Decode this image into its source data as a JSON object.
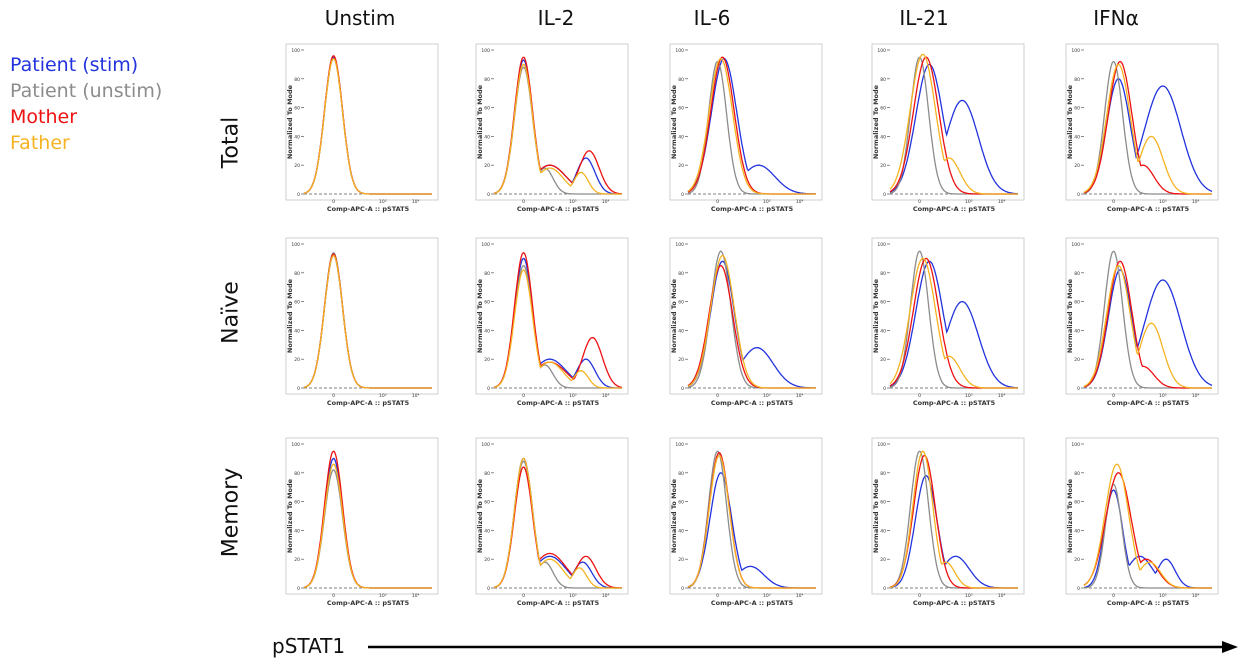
{
  "legend": [
    {
      "label": "Patient (stim)",
      "color": "#2233dd"
    },
    {
      "label": "Patient (unstim)",
      "color": "#8c8c8c"
    },
    {
      "label": "Mother",
      "color": "#ee1111"
    },
    {
      "label": "Father",
      "color": "#f5b321"
    }
  ],
  "columns": [
    "Unstim",
    "IL-2",
    "IL-6",
    "IL-21",
    "IFNα"
  ],
  "rows": [
    "Total",
    "Naïve",
    "Memory"
  ],
  "bottom_axis_label": "pSTAT1",
  "chart_data": {
    "type": "line",
    "panel_xlabel": "Comp-APC-A :: pSTAT5",
    "panel_ylabel": "Normalized To Mode",
    "yticks": [
      "0",
      "20",
      "40",
      "60",
      "80",
      "100"
    ],
    "xticks": [
      "0",
      "10³",
      "10⁴"
    ],
    "ylim": [
      0,
      100
    ],
    "x_scale": "biexponential",
    "series_names": [
      "Patient (stim)",
      "Patient (unstim)",
      "Mother",
      "Father"
    ],
    "panels": [
      {
        "row": "Total",
        "col": "Unstim",
        "curves": [
          {
            "series": "Patient (stim)",
            "peaks": [
              [
                0,
                95,
                1
              ]
            ]
          },
          {
            "series": "Patient (unstim)",
            "peaks": [
              [
                0,
                94,
                1
              ]
            ]
          },
          {
            "series": "Mother",
            "peaks": [
              [
                0,
                96,
                1
              ]
            ]
          },
          {
            "series": "Father",
            "peaks": [
              [
                0,
                94,
                1
              ]
            ]
          }
        ]
      },
      {
        "row": "Total",
        "col": "IL-2",
        "curves": [
          {
            "series": "Patient (stim)",
            "peaks": [
              [
                0,
                93,
                1
              ],
              [
                1.6,
                20,
                1.8
              ],
              [
                3.8,
                25,
                1
              ]
            ]
          },
          {
            "series": "Patient (unstim)",
            "peaks": [
              [
                0,
                88,
                1
              ],
              [
                1.3,
                18,
                0.9
              ]
            ]
          },
          {
            "series": "Mother",
            "peaks": [
              [
                0,
                95,
                1
              ],
              [
                1.6,
                20,
                1.8
              ],
              [
                4.0,
                30,
                1.1
              ]
            ]
          },
          {
            "series": "Father",
            "peaks": [
              [
                0,
                90,
                1
              ],
              [
                1.6,
                18,
                1.5
              ],
              [
                3.5,
                15,
                0.8
              ]
            ]
          }
        ]
      },
      {
        "row": "Total",
        "col": "IL-6",
        "curves": [
          {
            "series": "Patient (stim)",
            "peaks": [
              [
                0.4,
                94,
                1.4
              ],
              [
                2.5,
                20,
                1.8
              ]
            ]
          },
          {
            "series": "Patient (unstim)",
            "peaks": [
              [
                0,
                92,
                1
              ]
            ]
          },
          {
            "series": "Mother",
            "peaks": [
              [
                0.3,
                95,
                1.3
              ]
            ]
          },
          {
            "series": "Father",
            "peaks": [
              [
                0.2,
                94,
                1.3
              ]
            ]
          }
        ]
      },
      {
        "row": "Total",
        "col": "IL-21",
        "curves": [
          {
            "series": "Patient (stim)",
            "peaks": [
              [
                0.6,
                90,
                1.5
              ],
              [
                2.6,
                65,
                1.8
              ]
            ]
          },
          {
            "series": "Patient (unstim)",
            "peaks": [
              [
                0,
                95,
                1
              ]
            ]
          },
          {
            "series": "Mother",
            "peaks": [
              [
                0.4,
                95,
                1.4
              ]
            ]
          },
          {
            "series": "Father",
            "peaks": [
              [
                0.2,
                97,
                1.4
              ],
              [
                1.8,
                25,
                1.2
              ]
            ]
          }
        ]
      },
      {
        "row": "Total",
        "col": "IFNα",
        "curves": [
          {
            "series": "Patient (stim)",
            "peaks": [
              [
                0.3,
                80,
                1.3
              ],
              [
                3.0,
                75,
                2.0
              ]
            ]
          },
          {
            "series": "Patient (unstim)",
            "peaks": [
              [
                0,
                92,
                1
              ]
            ]
          },
          {
            "series": "Mother",
            "peaks": [
              [
                0.4,
                92,
                1.3
              ],
              [
                1.8,
                20,
                1.2
              ]
            ]
          },
          {
            "series": "Father",
            "peaks": [
              [
                0.3,
                90,
                1.3
              ],
              [
                2.3,
                40,
                1.3
              ]
            ]
          }
        ]
      },
      {
        "row": "Naïve",
        "col": "Unstim",
        "curves": [
          {
            "series": "Patient (stim)",
            "peaks": [
              [
                0,
                92,
                1
              ]
            ]
          },
          {
            "series": "Patient (unstim)",
            "peaks": [
              [
                0,
                94,
                1
              ]
            ]
          },
          {
            "series": "Mother",
            "peaks": [
              [
                0,
                93,
                1
              ]
            ]
          },
          {
            "series": "Father",
            "peaks": [
              [
                0,
                92,
                1
              ]
            ]
          }
        ]
      },
      {
        "row": "Naïve",
        "col": "IL-2",
        "curves": [
          {
            "series": "Patient (stim)",
            "peaks": [
              [
                0,
                90,
                1
              ],
              [
                1.6,
                20,
                1.8
              ],
              [
                3.8,
                20,
                1
              ]
            ]
          },
          {
            "series": "Patient (unstim)",
            "peaks": [
              [
                0,
                85,
                1
              ],
              [
                1.3,
                16,
                0.9
              ]
            ]
          },
          {
            "series": "Mother",
            "peaks": [
              [
                0,
                94,
                1
              ],
              [
                1.6,
                18,
                1.8
              ],
              [
                4.2,
                35,
                1.1
              ]
            ]
          },
          {
            "series": "Father",
            "peaks": [
              [
                0,
                82,
                1
              ],
              [
                1.6,
                18,
                1.5
              ],
              [
                3.5,
                12,
                0.8
              ]
            ]
          }
        ]
      },
      {
        "row": "Naïve",
        "col": "IL-6",
        "curves": [
          {
            "series": "Patient (stim)",
            "peaks": [
              [
                0.3,
                88,
                1.3
              ],
              [
                2.4,
                28,
                1.8
              ]
            ]
          },
          {
            "series": "Patient (unstim)",
            "peaks": [
              [
                0.2,
                95,
                1.1
              ]
            ]
          },
          {
            "series": "Mother",
            "peaks": [
              [
                0.2,
                85,
                1.3
              ]
            ]
          },
          {
            "series": "Father",
            "peaks": [
              [
                0.3,
                92,
                1.3
              ]
            ]
          }
        ]
      },
      {
        "row": "Naïve",
        "col": "IL-21",
        "curves": [
          {
            "series": "Patient (stim)",
            "peaks": [
              [
                0.6,
                88,
                1.5
              ],
              [
                2.6,
                60,
                1.8
              ]
            ]
          },
          {
            "series": "Patient (unstim)",
            "peaks": [
              [
                0,
                95,
                1
              ]
            ]
          },
          {
            "series": "Mother",
            "peaks": [
              [
                0.4,
                90,
                1.4
              ]
            ]
          },
          {
            "series": "Father",
            "peaks": [
              [
                0.2,
                90,
                1.4
              ],
              [
                1.8,
                22,
                1.2
              ]
            ]
          }
        ]
      },
      {
        "row": "Naïve",
        "col": "IFNα",
        "curves": [
          {
            "series": "Patient (stim)",
            "peaks": [
              [
                0.4,
                82,
                1.3
              ],
              [
                3.0,
                75,
                2.0
              ]
            ]
          },
          {
            "series": "Patient (unstim)",
            "peaks": [
              [
                0,
                95,
                1
              ]
            ]
          },
          {
            "series": "Mother",
            "peaks": [
              [
                0.4,
                88,
                1.3
              ],
              [
                1.8,
                15,
                1.2
              ]
            ]
          },
          {
            "series": "Father",
            "peaks": [
              [
                0.3,
                85,
                1.3
              ],
              [
                2.3,
                45,
                1.3
              ]
            ]
          }
        ]
      },
      {
        "row": "Memory",
        "col": "Unstim",
        "curves": [
          {
            "series": "Patient (stim)",
            "peaks": [
              [
                0,
                90,
                1
              ]
            ]
          },
          {
            "series": "Patient (unstim)",
            "peaks": [
              [
                0,
                82,
                1
              ]
            ]
          },
          {
            "series": "Mother",
            "peaks": [
              [
                0,
                95,
                1
              ]
            ]
          },
          {
            "series": "Father",
            "peaks": [
              [
                0,
                86,
                1
              ]
            ]
          }
        ]
      },
      {
        "row": "Memory",
        "col": "IL-2",
        "curves": [
          {
            "series": "Patient (stim)",
            "peaks": [
              [
                0,
                90,
                1
              ],
              [
                1.6,
                22,
                1.8
              ],
              [
                3.6,
                18,
                1
              ]
            ]
          },
          {
            "series": "Patient (unstim)",
            "peaks": [
              [
                0,
                88,
                1
              ],
              [
                1.3,
                18,
                0.9
              ]
            ]
          },
          {
            "series": "Mother",
            "peaks": [
              [
                0,
                84,
                1
              ],
              [
                1.6,
                24,
                1.8
              ],
              [
                3.8,
                22,
                1.1
              ]
            ]
          },
          {
            "series": "Father",
            "peaks": [
              [
                0,
                90,
                1
              ],
              [
                1.6,
                20,
                1.5
              ],
              [
                3.4,
                14,
                0.8
              ]
            ]
          }
        ]
      },
      {
        "row": "Memory",
        "col": "IL-6",
        "curves": [
          {
            "series": "Patient (stim)",
            "peaks": [
              [
                0.2,
                80,
                1.2
              ],
              [
                2.0,
                15,
                1.5
              ]
            ]
          },
          {
            "series": "Patient (unstim)",
            "peaks": [
              [
                0,
                95,
                1
              ]
            ]
          },
          {
            "series": "Mother",
            "peaks": [
              [
                0.1,
                94,
                1.1
              ]
            ]
          },
          {
            "series": "Father",
            "peaks": [
              [
                0.1,
                92,
                1.1
              ]
            ]
          }
        ]
      },
      {
        "row": "Memory",
        "col": "IL-21",
        "curves": [
          {
            "series": "Patient (stim)",
            "peaks": [
              [
                0.4,
                78,
                1.2
              ],
              [
                2.2,
                22,
                1.5
              ]
            ]
          },
          {
            "series": "Patient (unstim)",
            "peaks": [
              [
                0,
                95,
                1
              ]
            ]
          },
          {
            "series": "Mother",
            "peaks": [
              [
                0.3,
                92,
                1.2
              ]
            ]
          },
          {
            "series": "Father",
            "peaks": [
              [
                0.2,
                95,
                1.1
              ],
              [
                1.6,
                18,
                1.0
              ]
            ]
          }
        ]
      },
      {
        "row": "Memory",
        "col": "IFNα",
        "curves": [
          {
            "series": "Patient (stim)",
            "peaks": [
              [
                0,
                68,
                1
              ],
              [
                1.6,
                22,
                1.4
              ],
              [
                3.2,
                20,
                1.0
              ]
            ]
          },
          {
            "series": "Patient (unstim)",
            "peaks": [
              [
                0,
                72,
                0.9
              ]
            ]
          },
          {
            "series": "Mother",
            "peaks": [
              [
                0.3,
                80,
                1.4
              ],
              [
                2.0,
                20,
                1.3
              ]
            ]
          },
          {
            "series": "Father",
            "peaks": [
              [
                0.2,
                86,
                1.3
              ],
              [
                2.2,
                18,
                1.2
              ]
            ]
          }
        ]
      }
    ]
  }
}
